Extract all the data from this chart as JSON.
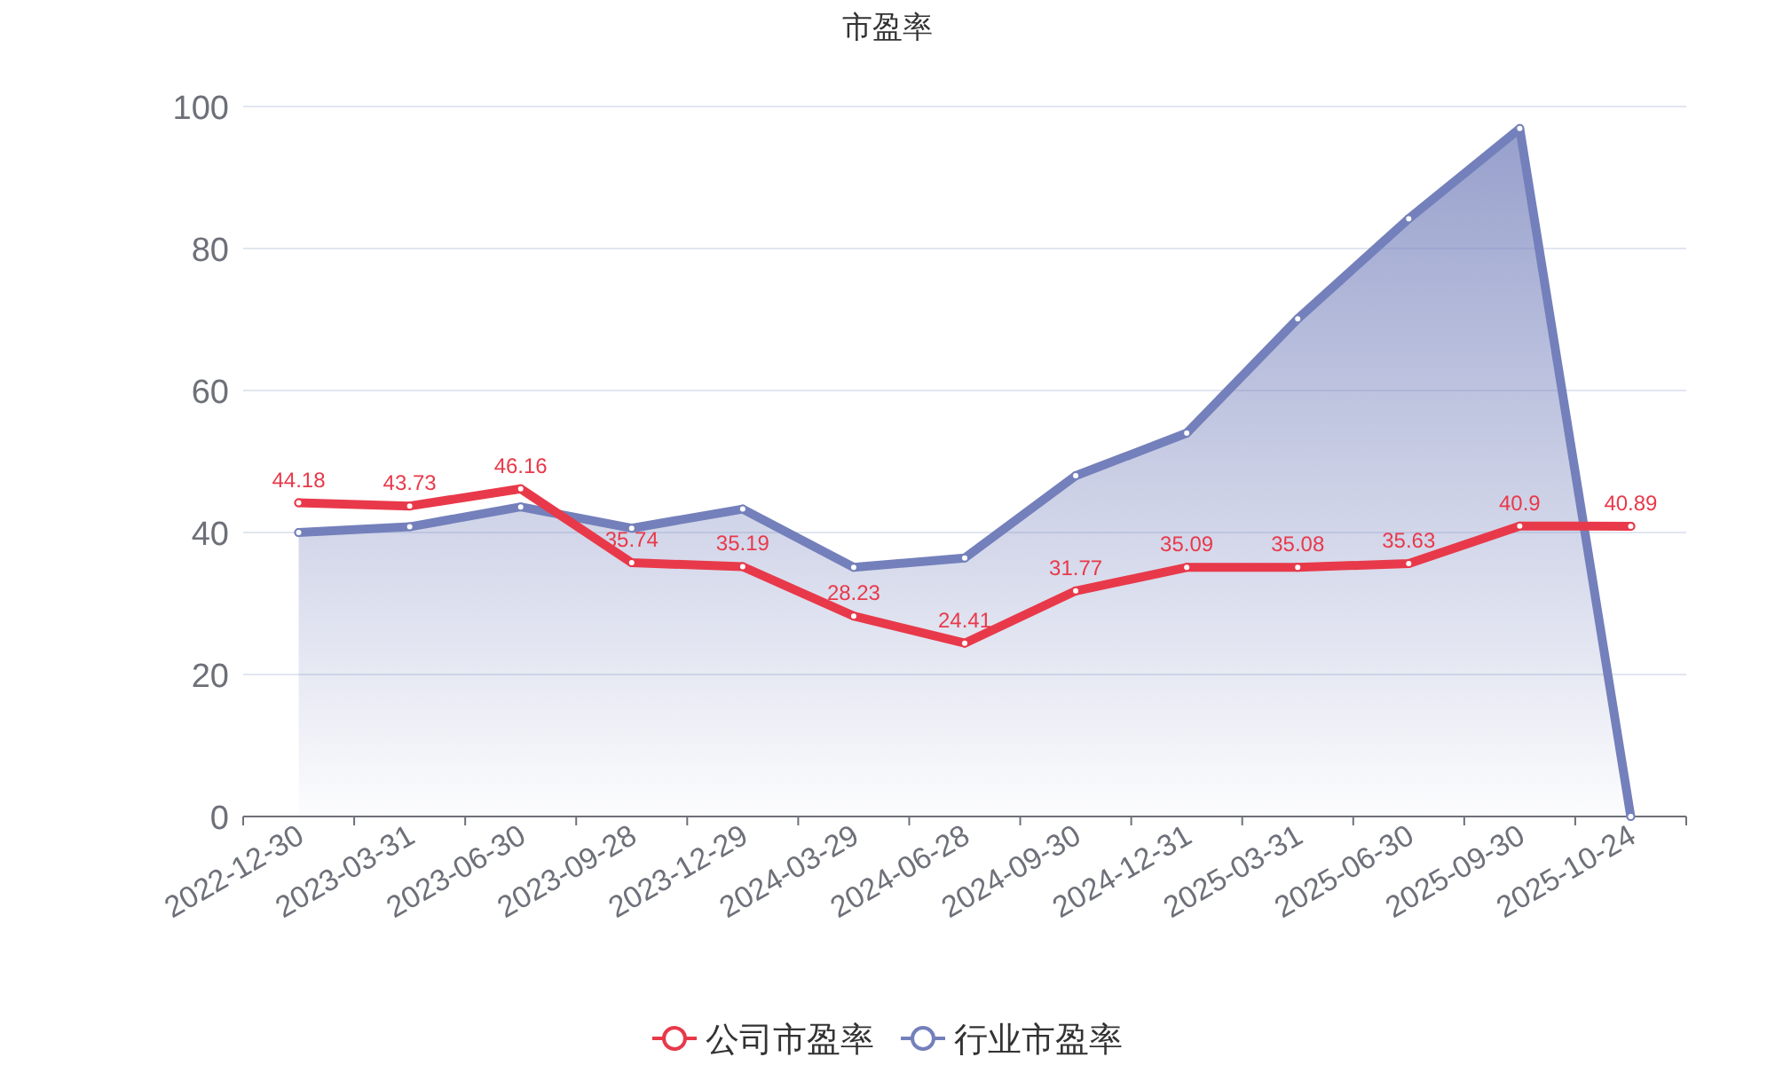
{
  "chart_data": {
    "type": "line",
    "title": "市盈率",
    "categories": [
      "2022-12-30",
      "2023-03-31",
      "2023-06-30",
      "2023-09-28",
      "2023-12-29",
      "2024-03-29",
      "2024-06-28",
      "2024-09-30",
      "2024-12-31",
      "2025-03-31",
      "2025-06-30",
      "2025-09-30",
      "2025-10-24"
    ],
    "series": [
      {
        "name": "公司市盈率",
        "color": "#e8394a",
        "values": [
          44.18,
          43.73,
          46.16,
          35.74,
          35.19,
          28.23,
          24.41,
          31.77,
          35.09,
          35.08,
          35.63,
          40.9,
          40.89
        ],
        "value_labels": [
          "44.18",
          "43.73",
          "46.16",
          "35.74",
          "35.19",
          "28.23",
          "24.41",
          "31.77",
          "35.09",
          "35.08",
          "35.63",
          "40.9",
          "40.89"
        ]
      },
      {
        "name": "行业市盈率",
        "color": "#7480bb",
        "type": "area",
        "values": [
          40,
          40.8,
          43.6,
          40.6,
          43.3,
          35.1,
          36.4,
          48,
          54,
          70.1,
          84.2,
          96.9,
          0
        ]
      }
    ],
    "ylim": [
      0,
      100
    ],
    "yticks": [
      0,
      20,
      40,
      60,
      80,
      100
    ],
    "grid": "y",
    "legend": "bottom",
    "marker": "circle",
    "line_style": "solid"
  }
}
